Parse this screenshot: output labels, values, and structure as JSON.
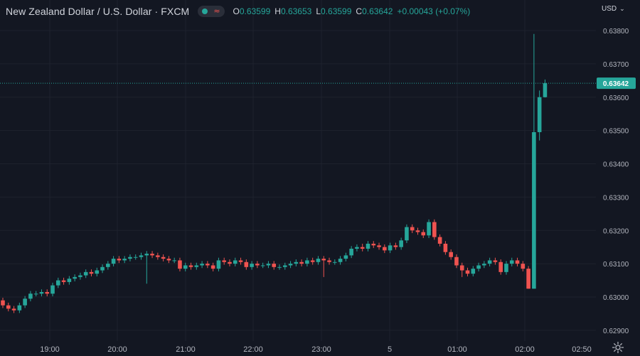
{
  "header": {
    "symbol_title": "New Zealand Dollar / U.S. Dollar · FXCM",
    "status_icon": "market-open-dot",
    "indicator_icon": "wave-icon",
    "ohlc": {
      "o_label": "O",
      "o_value": "0.63599",
      "h_label": "H",
      "h_value": "0.63653",
      "l_label": "L",
      "l_value": "0.63599",
      "c_label": "C",
      "c_value": "0.63642",
      "change": "+0.00043 (+0.07%)"
    }
  },
  "currency": {
    "label": "USD"
  },
  "colors": {
    "up": "#26a69a",
    "down": "#ef5350",
    "background": "#131722",
    "grid": "#1e222d"
  },
  "chart_data": {
    "type": "candlestick",
    "ylim": [
      0.62865,
      0.63825
    ],
    "y_ticks": [
      "0.62900",
      "0.63000",
      "0.63100",
      "0.63200",
      "0.63300",
      "0.63400",
      "0.63500",
      "0.63600",
      "0.63700",
      "0.63800"
    ],
    "x_tick_labels": [
      "19:00",
      "20:00",
      "21:00",
      "22:00",
      "23:00",
      "5",
      "01:00",
      "02:00",
      "02:50"
    ],
    "last_price": "0.63642",
    "closes": [
      0.62975,
      0.62965,
      0.6296,
      0.62975,
      0.62995,
      0.6301,
      0.6301,
      0.63015,
      0.6301,
      0.63035,
      0.6305,
      0.63045,
      0.63055,
      0.6306,
      0.63065,
      0.63075,
      0.6307,
      0.6308,
      0.6309,
      0.631,
      0.63115,
      0.6311,
      0.63115,
      0.6312,
      0.6312,
      0.63125,
      0.6313,
      0.63125,
      0.6312,
      0.63115,
      0.6311,
      0.6311,
      0.63085,
      0.63095,
      0.6309,
      0.63095,
      0.631,
      0.63095,
      0.63085,
      0.6311,
      0.63105,
      0.631,
      0.6311,
      0.63105,
      0.6309,
      0.631,
      0.63095,
      0.63095,
      0.631,
      0.6309,
      0.6309,
      0.63095,
      0.631,
      0.63105,
      0.631,
      0.6311,
      0.63105,
      0.63115,
      0.6311,
      0.63105,
      0.63105,
      0.63115,
      0.63125,
      0.63145,
      0.6315,
      0.63145,
      0.6316,
      0.63155,
      0.6315,
      0.6314,
      0.63155,
      0.6315,
      0.6317,
      0.6321,
      0.632,
      0.63195,
      0.63185,
      0.63225,
      0.6318,
      0.6316,
      0.63135,
      0.6312,
      0.63095,
      0.6308,
      0.6307,
      0.63085,
      0.63095,
      0.631,
      0.6311,
      0.63105,
      0.63075,
      0.631,
      0.6311,
      0.631,
      0.63085,
      0.63025,
      0.63495,
      0.636,
      0.63642
    ],
    "opens_first": 0.6299,
    "highs_extra": {
      "65": 0.6316,
      "96": 0.6379,
      "97": 0.6362,
      "98": 0.63653
    },
    "lows_extra": {
      "26": 0.6304,
      "58": 0.6306,
      "83": 0.6306,
      "95": 0.63025,
      "96": 0.63025,
      "97": 0.6347,
      "98": 0.63599
    }
  }
}
